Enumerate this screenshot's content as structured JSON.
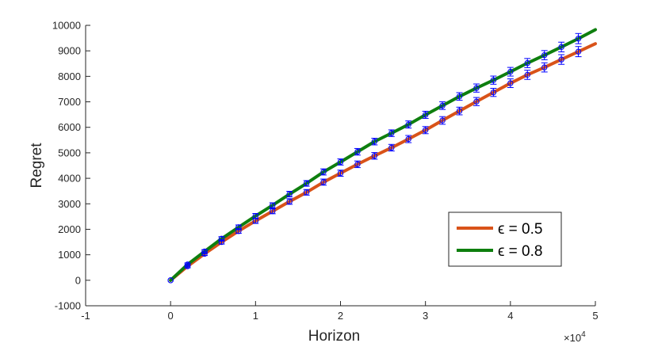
{
  "chart_data": {
    "type": "line",
    "xlabel": "Horizon",
    "ylabel": "Regret",
    "x_multiplier_label": "×10",
    "x_multiplier_exponent": "4",
    "xlim": [
      -1,
      5
    ],
    "ylim": [
      -1000,
      10000
    ],
    "x_ticks": [
      -1,
      0,
      1,
      2,
      3,
      4,
      5
    ],
    "x_tick_labels": [
      "-1",
      "0",
      "1",
      "2",
      "3",
      "4",
      "5"
    ],
    "y_ticks": [
      -1000,
      0,
      1000,
      2000,
      3000,
      4000,
      5000,
      6000,
      7000,
      8000,
      9000,
      10000
    ],
    "y_tick_labels": [
      "-1000",
      "0",
      "1000",
      "2000",
      "3000",
      "4000",
      "5000",
      "6000",
      "7000",
      "8000",
      "9000",
      "10000"
    ],
    "grid": false,
    "legend_position": "bottom-right",
    "series": [
      {
        "name": "ϵ = 0.5",
        "color": "#d95319",
        "x": [
          0,
          0.2,
          0.4,
          0.6,
          0.8,
          1.0,
          1.2,
          1.4,
          1.6,
          1.8,
          2.0,
          2.2,
          2.4,
          2.6,
          2.8,
          3.0,
          3.2,
          3.4,
          3.6,
          3.8,
          4.0,
          4.2,
          4.4,
          4.6,
          4.8,
          5.0
        ],
        "y": [
          0,
          550,
          1040,
          1500,
          1930,
          2330,
          2710,
          3090,
          3450,
          3850,
          4200,
          4550,
          4880,
          5200,
          5540,
          5890,
          6270,
          6640,
          7010,
          7370,
          7730,
          8060,
          8350,
          8660,
          8970,
          9280
        ],
        "error": [
          0,
          60,
          70,
          80,
          90,
          100,
          100,
          110,
          110,
          120,
          120,
          130,
          130,
          130,
          140,
          140,
          150,
          150,
          160,
          160,
          170,
          180,
          180,
          190,
          200,
          0
        ]
      },
      {
        "name": "ϵ = 0.8",
        "color": "#0e7f0e",
        "x": [
          0,
          0.2,
          0.4,
          0.6,
          0.8,
          1.0,
          1.2,
          1.4,
          1.6,
          1.8,
          2.0,
          2.2,
          2.4,
          2.6,
          2.8,
          3.0,
          3.2,
          3.4,
          3.6,
          3.8,
          4.0,
          4.2,
          4.4,
          4.6,
          4.8,
          5.0
        ],
        "y": [
          0,
          620,
          1130,
          1630,
          2080,
          2520,
          2940,
          3380,
          3800,
          4250,
          4640,
          5040,
          5440,
          5770,
          6110,
          6490,
          6850,
          7210,
          7540,
          7850,
          8180,
          8520,
          8830,
          9150,
          9480,
          9830
        ],
        "error": [
          0,
          60,
          70,
          80,
          90,
          100,
          100,
          110,
          110,
          120,
          120,
          130,
          130,
          130,
          140,
          140,
          150,
          150,
          160,
          160,
          170,
          180,
          180,
          190,
          200,
          0
        ]
      }
    ],
    "marker_color": "#0000ff"
  }
}
